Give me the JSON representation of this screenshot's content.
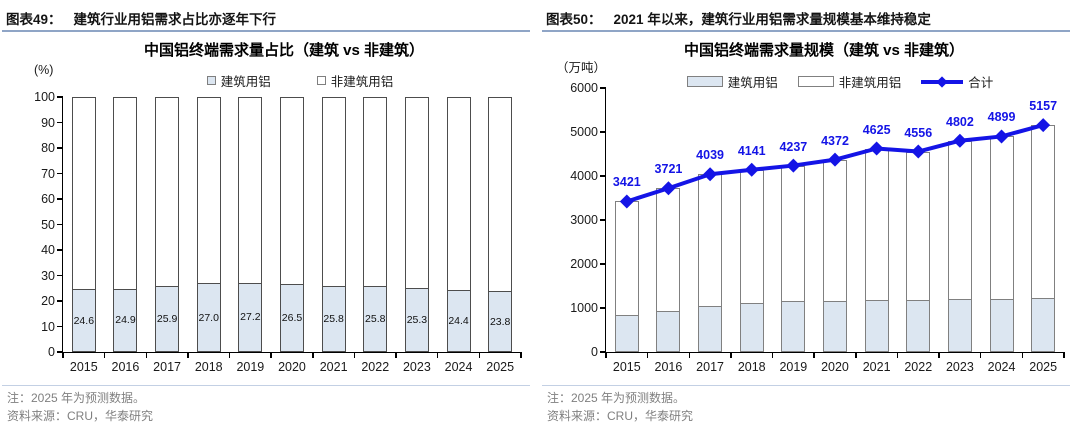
{
  "figures": [
    {
      "header_label": "图表49：",
      "header_title": "建筑行业用铝需求占比亦逐年下行",
      "note": "注：2025 年为预测数据。",
      "source": "资料来源：CRU，华泰研究"
    },
    {
      "header_label": "图表50：",
      "header_title": "2021 年以来，建筑行业用铝需求量规模基本维持稳定",
      "note": "注：2025 年为预测数据。",
      "source": "资料来源：CRU，华泰研究"
    }
  ],
  "chart_data": [
    {
      "type": "bar",
      "subtype": "stacked-100-percent",
      "title": "中国铝终端需求量占比（建筑 vs 非建筑）",
      "unit": "(%)",
      "categories": [
        "2015",
        "2016",
        "2017",
        "2018",
        "2019",
        "2020",
        "2021",
        "2022",
        "2023",
        "2024",
        "2025"
      ],
      "series": [
        {
          "name": "建筑用铝",
          "values": [
            24.6,
            24.9,
            25.9,
            27.0,
            27.2,
            26.5,
            25.8,
            25.8,
            25.3,
            24.4,
            23.8
          ]
        },
        {
          "name": "非建筑用铝",
          "values": [
            75.4,
            75.1,
            74.1,
            73.0,
            72.8,
            73.5,
            74.2,
            74.2,
            74.7,
            75.6,
            76.2
          ]
        }
      ],
      "ylim": [
        0,
        100
      ],
      "ytick_step": 10,
      "grid": false,
      "legend_position": "top",
      "data_labels": "construction share shown inside bars",
      "colors": {
        "construction_fill": "#dce6f1",
        "non_construction_fill": "#ffffff",
        "bar_border": "#4d4d4d"
      }
    },
    {
      "type": "bar+line",
      "subtype": "stacked-bars-with-total-line",
      "title": "中国铝终端需求量规模（建筑 vs 非建筑）",
      "unit": "（万吨）",
      "categories": [
        "2015",
        "2016",
        "2017",
        "2018",
        "2019",
        "2020",
        "2021",
        "2022",
        "2023",
        "2024",
        "2025"
      ],
      "series": [
        {
          "name": "建筑用铝",
          "type": "bar",
          "values": [
            841,
            927,
            1046,
            1118,
            1152,
            1159,
            1193,
            1175,
            1215,
            1195,
            1227
          ],
          "estimated_from_pixels": true
        },
        {
          "name": "非建筑用铝",
          "type": "bar",
          "values": [
            2580,
            2794,
            2993,
            3023,
            3085,
            3213,
            3432,
            3381,
            3587,
            3704,
            3930
          ],
          "estimated_from_pixels": true
        },
        {
          "name": "合计",
          "type": "line",
          "values": [
            3421,
            3721,
            4039,
            4141,
            4237,
            4372,
            4625,
            4556,
            4802,
            4899,
            5157
          ]
        }
      ],
      "ylim": [
        0,
        6000
      ],
      "ytick_step": 1000,
      "grid": false,
      "legend_position": "top",
      "data_labels": "totals labeled above line markers",
      "colors": {
        "construction_fill": "#dce6f1",
        "non_construction_fill": "#ffffff",
        "bar_border": "#808080",
        "line": "#1414e6"
      }
    }
  ]
}
